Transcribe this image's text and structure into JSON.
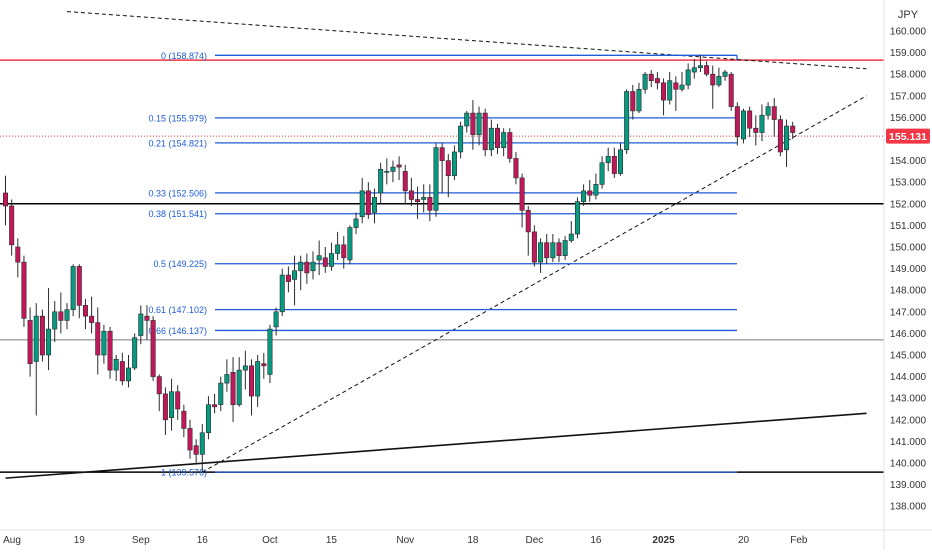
{
  "currency_label": "JPY",
  "current_price": {
    "label": "155.131",
    "value": 155.131,
    "color": "#f23645"
  },
  "colors": {
    "up": "#089981",
    "down": "#c2185b",
    "wick": "#2b2b2b",
    "fib": "#1e5bd6",
    "fib_text": "#1e5bd6",
    "resistance": "#f23645",
    "axis_text": "#333333",
    "grid_line": "#000000"
  },
  "chart_data": {
    "type": "candlestick",
    "symbol_currency": "JPY",
    "y_axis": {
      "min": 138.0,
      "max": 160.0,
      "ticks": [
        "138.000",
        "139.000",
        "140.000",
        "141.000",
        "142.000",
        "143.000",
        "144.000",
        "145.000",
        "146.000",
        "147.000",
        "148.000",
        "149.000",
        "150.000",
        "151.000",
        "152.000",
        "153.000",
        "154.000",
        "155.000",
        "156.000",
        "157.000",
        "158.000",
        "159.000",
        "160.000"
      ]
    },
    "x_axis": {
      "labels": [
        {
          "label": "Aug",
          "bar": 0,
          "bold": false
        },
        {
          "label": "19",
          "bar": 12,
          "bold": false
        },
        {
          "label": "Sep",
          "bar": 22,
          "bold": false
        },
        {
          "label": "16",
          "bar": 32,
          "bold": false
        },
        {
          "label": "Oct",
          "bar": 43,
          "bold": false
        },
        {
          "label": "15",
          "bar": 53,
          "bold": false
        },
        {
          "label": "Nov",
          "bar": 65,
          "bold": false
        },
        {
          "label": "18",
          "bar": 76,
          "bold": false
        },
        {
          "label": "Dec",
          "bar": 86,
          "bold": false
        },
        {
          "label": "16",
          "bar": 96,
          "bold": false
        },
        {
          "label": "2025",
          "bar": 107,
          "bold": true
        },
        {
          "label": "20",
          "bar": 120,
          "bold": false
        },
        {
          "label": "Feb",
          "bar": 129,
          "bold": false
        }
      ]
    },
    "candles": [
      [
        0,
        152.5,
        151.9,
        153.3,
        151.0
      ],
      [
        1,
        151.9,
        150.1,
        152.2,
        149.6
      ],
      [
        2,
        150.0,
        149.3,
        150.4,
        148.6
      ],
      [
        3,
        149.3,
        146.7,
        149.6,
        146.3
      ],
      [
        4,
        146.6,
        144.6,
        147.2,
        144.0
      ],
      [
        5,
        144.7,
        146.8,
        147.4,
        142.2
      ],
      [
        6,
        146.8,
        145.0,
        147.1,
        144.7
      ],
      [
        7,
        145.0,
        146.2,
        148.1,
        144.3
      ],
      [
        8,
        146.2,
        147.0,
        147.5,
        145.6
      ],
      [
        9,
        147.0,
        146.6,
        147.9,
        146.0
      ],
      [
        10,
        146.6,
        147.1,
        147.4,
        146.2
      ],
      [
        11,
        147.1,
        149.1,
        149.2,
        146.8
      ],
      [
        12,
        149.1,
        147.3,
        149.2,
        146.7
      ],
      [
        13,
        147.3,
        146.8,
        147.6,
        146.2
      ],
      [
        14,
        146.8,
        146.5,
        147.7,
        146.0
      ],
      [
        15,
        146.5,
        145.0,
        147.2,
        144.1
      ],
      [
        16,
        145.0,
        146.1,
        146.4,
        144.6
      ],
      [
        17,
        146.1,
        144.3,
        146.3,
        143.9
      ],
      [
        18,
        144.3,
        144.8,
        145.0,
        143.8
      ],
      [
        19,
        144.7,
        143.8,
        145.1,
        143.6
      ],
      [
        20,
        143.8,
        144.4,
        145.0,
        143.5
      ],
      [
        21,
        144.4,
        145.8,
        146.0,
        144.3
      ],
      [
        22,
        145.9,
        146.9,
        147.3,
        145.5
      ],
      [
        23,
        146.8,
        146.6,
        147.3,
        145.7
      ],
      [
        24,
        146.6,
        144.0,
        146.8,
        143.8
      ],
      [
        25,
        144.0,
        143.2,
        144.1,
        142.4
      ],
      [
        26,
        143.2,
        142.0,
        143.5,
        141.3
      ],
      [
        27,
        142.1,
        143.3,
        143.9,
        141.5
      ],
      [
        28,
        143.3,
        142.5,
        143.6,
        142.0
      ],
      [
        29,
        142.4,
        141.6,
        142.7,
        141.2
      ],
      [
        30,
        141.6,
        140.6,
        142.0,
        140.2
      ],
      [
        31,
        140.8,
        140.4,
        141.1,
        140.0
      ],
      [
        32,
        140.4,
        141.4,
        141.8,
        139.6
      ],
      [
        33,
        141.4,
        142.7,
        143.1,
        141.1
      ],
      [
        34,
        142.7,
        142.6,
        143.2,
        142.3
      ],
      [
        35,
        142.7,
        143.7,
        144.0,
        142.4
      ],
      [
        36,
        143.7,
        144.1,
        144.8,
        143.3
      ],
      [
        37,
        144.2,
        142.7,
        144.9,
        141.9
      ],
      [
        38,
        142.7,
        144.3,
        144.9,
        142.6
      ],
      [
        39,
        144.3,
        144.5,
        145.2,
        143.4
      ],
      [
        40,
        144.5,
        143.1,
        144.8,
        142.2
      ],
      [
        41,
        143.1,
        144.7,
        145.0,
        142.6
      ],
      [
        42,
        144.6,
        144.5,
        145.1,
        143.9
      ],
      [
        43,
        144.1,
        146.2,
        146.4,
        143.7
      ],
      [
        44,
        146.3,
        147.0,
        147.2,
        145.9
      ],
      [
        45,
        147.0,
        148.7,
        149.0,
        146.8
      ],
      [
        46,
        148.7,
        148.4,
        149.1,
        147.9
      ],
      [
        47,
        148.5,
        148.9,
        149.6,
        147.3
      ],
      [
        48,
        148.9,
        149.3,
        149.6,
        148.0
      ],
      [
        49,
        149.3,
        148.8,
        149.7,
        148.3
      ],
      [
        50,
        148.9,
        149.3,
        149.8,
        148.5
      ],
      [
        51,
        149.4,
        149.6,
        150.3,
        148.7
      ],
      [
        52,
        149.5,
        149.1,
        150.0,
        148.8
      ],
      [
        53,
        149.1,
        149.7,
        150.2,
        148.9
      ],
      [
        54,
        149.7,
        150.1,
        150.7,
        149.4
      ],
      [
        55,
        150.1,
        149.5,
        150.5,
        149.0
      ],
      [
        56,
        149.4,
        150.9,
        151.0,
        149.2
      ],
      [
        57,
        150.9,
        151.3,
        151.6,
        150.6
      ],
      [
        58,
        151.4,
        152.6,
        153.2,
        151.1
      ],
      [
        59,
        152.6,
        151.5,
        153.0,
        151.3
      ],
      [
        60,
        151.6,
        152.3,
        152.7,
        151.1
      ],
      [
        61,
        152.5,
        153.6,
        153.9,
        152.0
      ],
      [
        62,
        153.5,
        153.5,
        154.1,
        152.9
      ],
      [
        63,
        153.5,
        153.7,
        154.0,
        153.0
      ],
      [
        64,
        153.8,
        153.7,
        154.2,
        153.1
      ],
      [
        65,
        153.5,
        152.6,
        153.8,
        152.0
      ],
      [
        66,
        152.6,
        152.2,
        153.2,
        151.9
      ],
      [
        67,
        152.2,
        152.1,
        152.8,
        151.3
      ],
      [
        68,
        152.2,
        152.3,
        152.9,
        151.6
      ],
      [
        69,
        152.3,
        151.7,
        152.9,
        151.2
      ],
      [
        70,
        151.7,
        154.6,
        154.8,
        151.4
      ],
      [
        71,
        154.6,
        154.0,
        154.8,
        152.5
      ],
      [
        72,
        154.0,
        153.3,
        154.3,
        152.3
      ],
      [
        73,
        153.3,
        154.4,
        154.7,
        153.1
      ],
      [
        74,
        154.4,
        155.6,
        155.8,
        154.1
      ],
      [
        75,
        155.6,
        156.2,
        156.3,
        155.3
      ],
      [
        76,
        156.2,
        155.2,
        156.8,
        154.5
      ],
      [
        77,
        155.2,
        156.2,
        156.5,
        154.7
      ],
      [
        78,
        156.2,
        154.5,
        156.4,
        154.2
      ],
      [
        79,
        154.5,
        155.5,
        155.9,
        154.2
      ],
      [
        80,
        155.5,
        154.6,
        155.7,
        154.3
      ],
      [
        81,
        154.6,
        155.3,
        155.5,
        154.2
      ],
      [
        82,
        155.3,
        154.1,
        155.5,
        153.9
      ],
      [
        83,
        154.1,
        153.2,
        154.4,
        152.9
      ],
      [
        84,
        153.2,
        151.7,
        153.4,
        150.9
      ],
      [
        85,
        151.7,
        150.7,
        151.9,
        149.6
      ],
      [
        86,
        150.7,
        149.3,
        151.0,
        149.1
      ],
      [
        87,
        149.3,
        150.2,
        150.4,
        148.8
      ],
      [
        88,
        150.2,
        149.5,
        150.6,
        149.2
      ],
      [
        89,
        149.5,
        150.2,
        150.6,
        149.3
      ],
      [
        90,
        150.2,
        149.6,
        150.4,
        149.3
      ],
      [
        91,
        149.6,
        150.3,
        150.5,
        149.4
      ],
      [
        92,
        150.3,
        150.6,
        151.2,
        150.2
      ],
      [
        93,
        150.6,
        152.1,
        152.3,
        150.4
      ],
      [
        94,
        152.1,
        152.6,
        152.9,
        151.9
      ],
      [
        95,
        152.6,
        152.4,
        153.1,
        152.1
      ],
      [
        96,
        152.4,
        152.9,
        153.4,
        152.2
      ],
      [
        97,
        152.9,
        153.9,
        154.2,
        152.7
      ],
      [
        98,
        153.9,
        154.2,
        154.6,
        153.5
      ],
      [
        99,
        154.2,
        153.4,
        154.6,
        153.2
      ],
      [
        100,
        153.4,
        154.5,
        154.8,
        153.3
      ],
      [
        101,
        154.5,
        157.2,
        157.3,
        154.3
      ],
      [
        102,
        157.2,
        156.3,
        157.5,
        155.9
      ],
      [
        103,
        156.3,
        157.3,
        157.6,
        156.2
      ],
      [
        104,
        157.3,
        158.0,
        158.1,
        157.1
      ],
      [
        105,
        158.0,
        157.7,
        158.2,
        157.4
      ],
      [
        106,
        157.8,
        157.6,
        158.1,
        157.3
      ],
      [
        107,
        157.6,
        156.8,
        157.8,
        156.1
      ],
      [
        108,
        156.8,
        157.7,
        158.1,
        156.6
      ],
      [
        109,
        157.6,
        157.3,
        157.9,
        156.3
      ],
      [
        110,
        157.3,
        157.5,
        158.1,
        157.2
      ],
      [
        111,
        157.5,
        158.2,
        158.5,
        157.3
      ],
      [
        112,
        158.1,
        158.3,
        158.7,
        157.8
      ],
      [
        113,
        158.3,
        158.4,
        158.9,
        158.1
      ],
      [
        114,
        158.4,
        158.0,
        158.6,
        157.9
      ],
      [
        115,
        158.0,
        157.5,
        158.4,
        156.4
      ],
      [
        116,
        157.5,
        157.9,
        158.3,
        157.4
      ],
      [
        117,
        157.9,
        158.1,
        158.2,
        157.7
      ],
      [
        118,
        158.0,
        156.5,
        158.1,
        156.3
      ],
      [
        119,
        156.5,
        155.1,
        156.7,
        154.7
      ],
      [
        120,
        155.0,
        156.3,
        156.4,
        154.8
      ],
      [
        121,
        156.3,
        155.5,
        156.5,
        155.1
      ],
      [
        122,
        155.5,
        155.3,
        156.1,
        154.7
      ],
      [
        123,
        155.3,
        156.1,
        156.6,
        154.9
      ],
      [
        124,
        156.1,
        156.5,
        156.7,
        155.9
      ],
      [
        125,
        156.5,
        155.9,
        156.9,
        155.1
      ],
      [
        126,
        155.9,
        154.4,
        156.1,
        154.2
      ],
      [
        127,
        154.5,
        155.6,
        155.9,
        153.7
      ],
      [
        128,
        155.6,
        155.3,
        155.8,
        155.0
      ]
    ],
    "fib_levels": [
      {
        "label": "0 (158.874)",
        "value": 158.874
      },
      {
        "label": "0.15 (155.979)",
        "value": 155.979
      },
      {
        "label": "0.21 (154.821)",
        "value": 154.821
      },
      {
        "label": "0.33 (152.506)",
        "value": 152.506
      },
      {
        "label": "0.38 (151.541)",
        "value": 151.541
      },
      {
        "label": "0.5 (149.225)",
        "value": 149.225
      },
      {
        "label": "0.61 (147.102)",
        "value": 147.102
      },
      {
        "label": "0.66 (146.137)",
        "value": 146.137
      },
      {
        "label": "1 (139.576)",
        "value": 139.576
      }
    ],
    "horizontal_lines": [
      {
        "value": 158.65,
        "style": "resistance"
      },
      {
        "value": 152.0,
        "style": "black"
      },
      {
        "value": 145.7,
        "style": "gray"
      },
      {
        "value": 139.576,
        "style": "black"
      },
      {
        "value": 155.131,
        "style": "price-dotted"
      }
    ],
    "trend_lines": [
      {
        "from": [
          32,
          139.576
        ],
        "to": [
          140,
          157.0
        ],
        "style": "dashed"
      },
      {
        "from": [
          10,
          160.9
        ],
        "to": [
          140,
          158.25
        ],
        "style": "dashed"
      },
      {
        "from": [
          0,
          139.3
        ],
        "to": [
          140,
          142.3
        ],
        "style": "solid"
      }
    ]
  }
}
